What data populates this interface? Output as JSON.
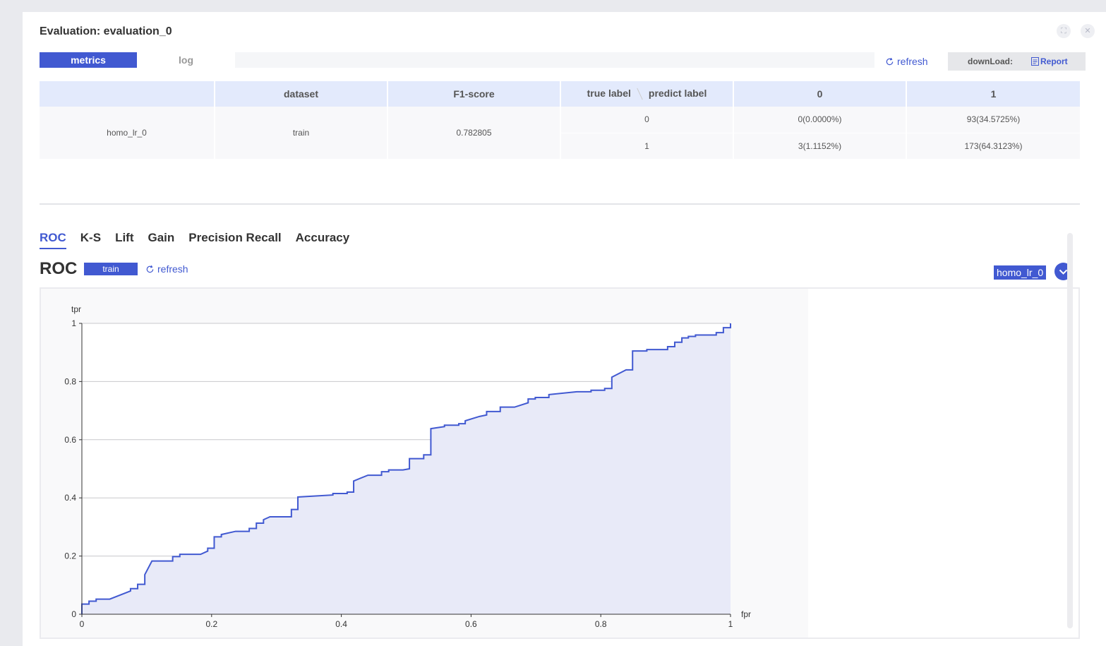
{
  "header": {
    "title": "Evaluation: evaluation_0"
  },
  "tabs": [
    {
      "label": "metrics"
    },
    {
      "label": "log"
    }
  ],
  "toolbar": {
    "refresh_label": "refresh",
    "download_label": "downLoad:",
    "report_label": "Report"
  },
  "metrics_table": {
    "headers": [
      "",
      "dataset",
      "F1-score",
      "true label",
      "predict label",
      "0",
      "1"
    ],
    "model": "homo_lr_0",
    "dataset": "train",
    "f1": "0.782805",
    "rows": [
      {
        "true_label": "0",
        "c0": "0(0.0000%)",
        "c1": "93(34.5725%)"
      },
      {
        "true_label": "1",
        "c0": "3(1.1152%)",
        "c1": "173(64.3123%)"
      }
    ]
  },
  "curve_tabs": [
    "ROC",
    "K-S",
    "Lift",
    "Gain",
    "Precision Recall",
    "Accuracy"
  ],
  "roc_header": {
    "title": "ROC",
    "dataset_badge": "train",
    "refresh_label": "refresh",
    "model_tag": "homo_lr_0"
  },
  "colors": {
    "accent": "#4159d1",
    "fill": "#e8eaf8"
  },
  "chart_data": {
    "type": "area",
    "xlabel": "fpr",
    "ylabel": "tpr",
    "xlim": [
      0,
      1
    ],
    "ylim": [
      0,
      1
    ],
    "x_ticks": [
      "0",
      "0.2",
      "0.4",
      "0.6",
      "0.8",
      "1"
    ],
    "y_ticks": [
      "0",
      "0.2",
      "0.4",
      "0.6",
      "0.8",
      "1"
    ],
    "grid": true,
    "series": [
      {
        "points": [
          [
            0,
            0
          ],
          [
            0,
            0.035
          ],
          [
            0.011,
            0.035
          ],
          [
            0.011,
            0.045
          ],
          [
            0.022,
            0.045
          ],
          [
            0.022,
            0.052
          ],
          [
            0.043,
            0.052
          ],
          [
            0.075,
            0.08
          ],
          [
            0.075,
            0.088
          ],
          [
            0.086,
            0.088
          ],
          [
            0.086,
            0.103
          ],
          [
            0.097,
            0.103
          ],
          [
            0.097,
            0.136
          ],
          [
            0.108,
            0.183
          ],
          [
            0.14,
            0.183
          ],
          [
            0.14,
            0.198
          ],
          [
            0.151,
            0.198
          ],
          [
            0.151,
            0.206
          ],
          [
            0.183,
            0.206
          ],
          [
            0.194,
            0.217
          ],
          [
            0.194,
            0.227
          ],
          [
            0.204,
            0.227
          ],
          [
            0.204,
            0.266
          ],
          [
            0.215,
            0.266
          ],
          [
            0.215,
            0.274
          ],
          [
            0.237,
            0.285
          ],
          [
            0.258,
            0.285
          ],
          [
            0.258,
            0.295
          ],
          [
            0.269,
            0.295
          ],
          [
            0.269,
            0.313
          ],
          [
            0.28,
            0.313
          ],
          [
            0.28,
            0.325
          ],
          [
            0.29,
            0.335
          ],
          [
            0.323,
            0.335
          ],
          [
            0.323,
            0.36
          ],
          [
            0.333,
            0.36
          ],
          [
            0.333,
            0.403
          ],
          [
            0.387,
            0.41
          ],
          [
            0.387,
            0.415
          ],
          [
            0.409,
            0.415
          ],
          [
            0.409,
            0.42
          ],
          [
            0.419,
            0.42
          ],
          [
            0.419,
            0.458
          ],
          [
            0.441,
            0.478
          ],
          [
            0.462,
            0.478
          ],
          [
            0.462,
            0.49
          ],
          [
            0.473,
            0.49
          ],
          [
            0.473,
            0.496
          ],
          [
            0.495,
            0.496
          ],
          [
            0.505,
            0.5
          ],
          [
            0.505,
            0.535
          ],
          [
            0.527,
            0.535
          ],
          [
            0.527,
            0.548
          ],
          [
            0.538,
            0.548
          ],
          [
            0.538,
            0.638
          ],
          [
            0.559,
            0.645
          ],
          [
            0.559,
            0.65
          ],
          [
            0.581,
            0.65
          ],
          [
            0.581,
            0.655
          ],
          [
            0.591,
            0.655
          ],
          [
            0.591,
            0.665
          ],
          [
            0.613,
            0.68
          ],
          [
            0.624,
            0.685
          ],
          [
            0.624,
            0.687
          ],
          [
            0.624,
            0.697
          ],
          [
            0.645,
            0.697
          ],
          [
            0.645,
            0.712
          ],
          [
            0.667,
            0.712
          ],
          [
            0.688,
            0.727
          ],
          [
            0.688,
            0.74
          ],
          [
            0.699,
            0.74
          ],
          [
            0.699,
            0.745
          ],
          [
            0.72,
            0.745
          ],
          [
            0.72,
            0.755
          ],
          [
            0.763,
            0.765
          ],
          [
            0.785,
            0.765
          ],
          [
            0.785,
            0.77
          ],
          [
            0.806,
            0.77
          ],
          [
            0.806,
            0.776
          ],
          [
            0.817,
            0.776
          ],
          [
            0.817,
            0.815
          ],
          [
            0.839,
            0.84
          ],
          [
            0.849,
            0.84
          ],
          [
            0.849,
            0.905
          ],
          [
            0.871,
            0.905
          ],
          [
            0.871,
            0.91
          ],
          [
            0.903,
            0.91
          ],
          [
            0.903,
            0.92
          ],
          [
            0.914,
            0.92
          ],
          [
            0.914,
            0.935
          ],
          [
            0.925,
            0.935
          ],
          [
            0.925,
            0.95
          ],
          [
            0.935,
            0.95
          ],
          [
            0.935,
            0.955
          ],
          [
            0.946,
            0.955
          ],
          [
            0.946,
            0.96
          ],
          [
            0.978,
            0.96
          ],
          [
            0.978,
            0.968
          ],
          [
            0.989,
            0.968
          ],
          [
            0.989,
            0.985
          ],
          [
            1.0,
            0.985
          ],
          [
            1.0,
            1.0
          ]
        ]
      }
    ]
  }
}
